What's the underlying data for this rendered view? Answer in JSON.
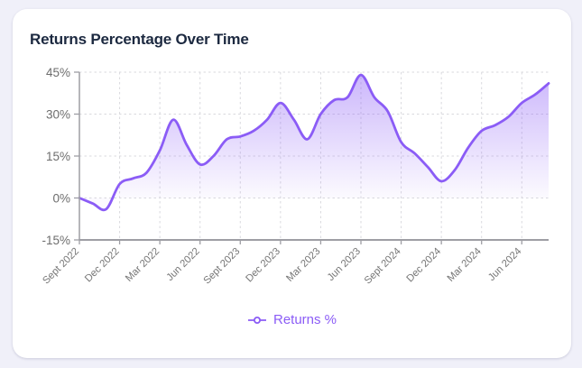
{
  "page": {
    "background": "#f0f0f9"
  },
  "card": {
    "title": "Returns Percentage Over Time",
    "background": "#ffffff"
  },
  "legend": {
    "label": "Returns %",
    "color": "#8b5cf6",
    "marker": "line-circle-icon",
    "position": "bottom-center"
  },
  "chart_data": {
    "type": "area",
    "title": "Returns Percentage Over Time",
    "x_tick_labels": [
      "Sept 2022",
      "Dec 2022",
      "Mar 2022",
      "Jun 2022",
      "Sept 2023",
      "Dec 2023",
      "Mar 2023",
      "Jun 2023",
      "Sept 2024",
      "Dec 2024",
      "Mar 2024",
      "Jun 2024"
    ],
    "x_tick_indices": [
      0,
      3,
      6,
      9,
      12,
      15,
      18,
      21,
      24,
      27,
      30,
      33
    ],
    "x_label_rotation": -45,
    "series": [
      {
        "name": "Returns %",
        "color": "#8b5cf6",
        "values": [
          0,
          -2,
          -4,
          5,
          7,
          9,
          17,
          28,
          19,
          12,
          15,
          21,
          22,
          24,
          28,
          34,
          28,
          21,
          30,
          35,
          36,
          44,
          36,
          31,
          20,
          16,
          11,
          6,
          10,
          18,
          24,
          26,
          29,
          34,
          37,
          41
        ]
      }
    ],
    "ylim": [
      -15,
      45
    ],
    "y_ticks": [
      45,
      30,
      15,
      0,
      -15
    ],
    "y_tick_labels": [
      "45%",
      "30%",
      "15%",
      "0%",
      "-15%"
    ],
    "y_unit": "%",
    "grid": "dashed",
    "fill": "gradient-to-zero-baseline",
    "legend_position": "bottom"
  },
  "colors": {
    "line": "#8b5cf6",
    "fill_top": "#8b5cf6",
    "axis": "#9e9ea4",
    "gridline": "#d9d9de",
    "y_label": "#6d6d6d",
    "x_label": "#767676",
    "title": "#1c2940"
  }
}
